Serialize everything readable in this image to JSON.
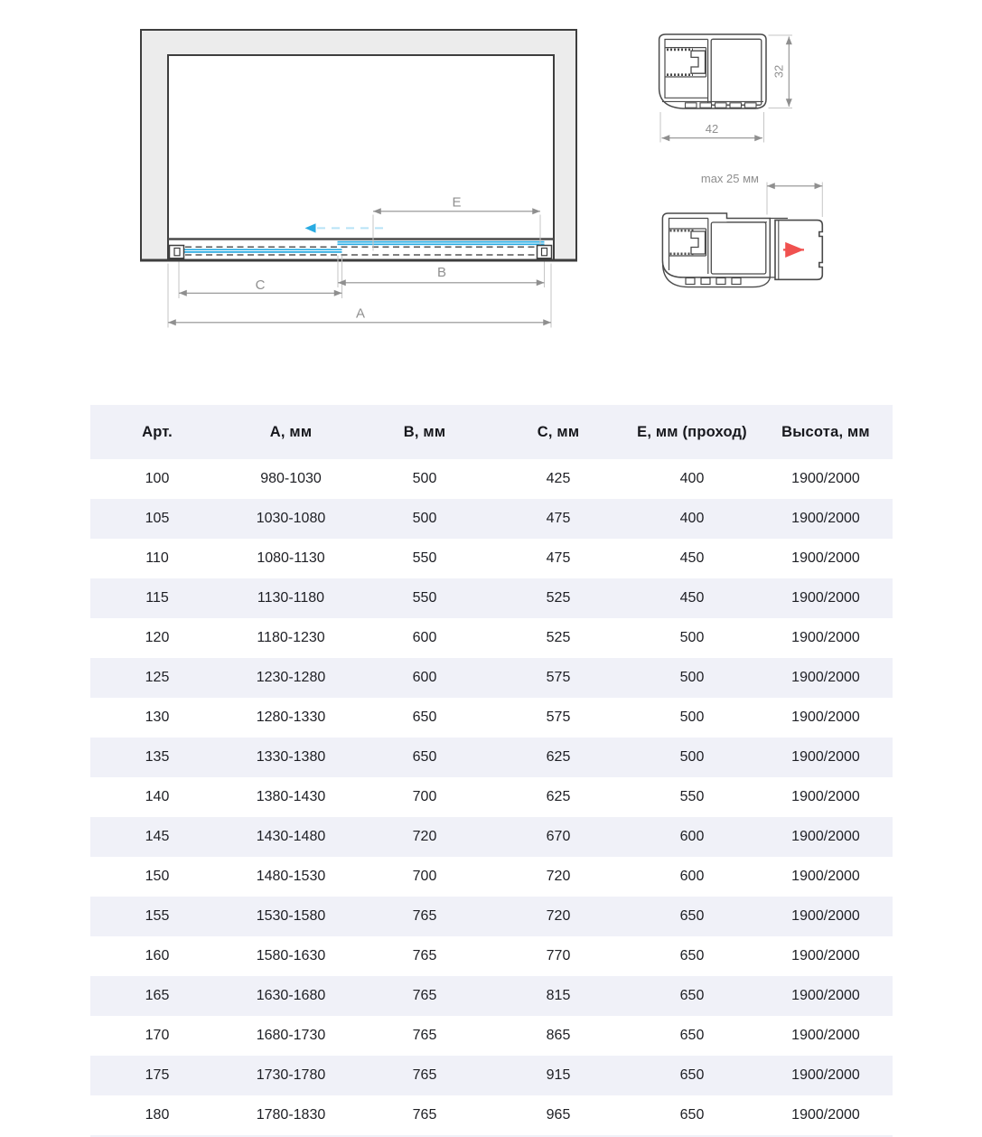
{
  "diagram": {
    "plan_view": {
      "dim_a_label": "A",
      "dim_b_label": "B",
      "dim_c_label": "C",
      "dim_e_label": "E"
    },
    "profile_section": {
      "width_label": "42",
      "height_label": "32"
    },
    "profile_adjustment": {
      "max_extension_label": "max 25 мм"
    },
    "colors": {
      "glass_blue": "#29ABE2",
      "slide_arrow_blue": "#B7E3F6",
      "extension_arrow_red": "#F0514F",
      "wall_gray": "#ECECEC",
      "outline_dark": "#3E3E3E",
      "dimension_gray": "#8F8F8F"
    }
  },
  "table": {
    "headers": [
      "Арт.",
      "А, мм",
      "В, мм",
      "С, мм",
      "Е, мм (проход)",
      "Высота, мм"
    ],
    "stripe_color": "#F0F1F8",
    "rows": [
      [
        "100",
        "980-1030",
        "500",
        "425",
        "400",
        "1900/2000"
      ],
      [
        "105",
        "1030-1080",
        "500",
        "475",
        "400",
        "1900/2000"
      ],
      [
        "110",
        "1080-1130",
        "550",
        "475",
        "450",
        "1900/2000"
      ],
      [
        "115",
        "1130-1180",
        "550",
        "525",
        "450",
        "1900/2000"
      ],
      [
        "120",
        "1180-1230",
        "600",
        "525",
        "500",
        "1900/2000"
      ],
      [
        "125",
        "1230-1280",
        "600",
        "575",
        "500",
        "1900/2000"
      ],
      [
        "130",
        "1280-1330",
        "650",
        "575",
        "500",
        "1900/2000"
      ],
      [
        "135",
        "1330-1380",
        "650",
        "625",
        "500",
        "1900/2000"
      ],
      [
        "140",
        "1380-1430",
        "700",
        "625",
        "550",
        "1900/2000"
      ],
      [
        "145",
        "1430-1480",
        "720",
        "670",
        "600",
        "1900/2000"
      ],
      [
        "150",
        "1480-1530",
        "700",
        "720",
        "600",
        "1900/2000"
      ],
      [
        "155",
        "1530-1580",
        "765",
        "720",
        "650",
        "1900/2000"
      ],
      [
        "160",
        "1580-1630",
        "765",
        "770",
        "650",
        "1900/2000"
      ],
      [
        "165",
        "1630-1680",
        "765",
        "815",
        "650",
        "1900/2000"
      ],
      [
        "170",
        "1680-1730",
        "765",
        "865",
        "650",
        "1900/2000"
      ],
      [
        "175",
        "1730-1780",
        "765",
        "915",
        "650",
        "1900/2000"
      ],
      [
        "180",
        "1780-1830",
        "765",
        "965",
        "650",
        "1900/2000"
      ]
    ]
  }
}
